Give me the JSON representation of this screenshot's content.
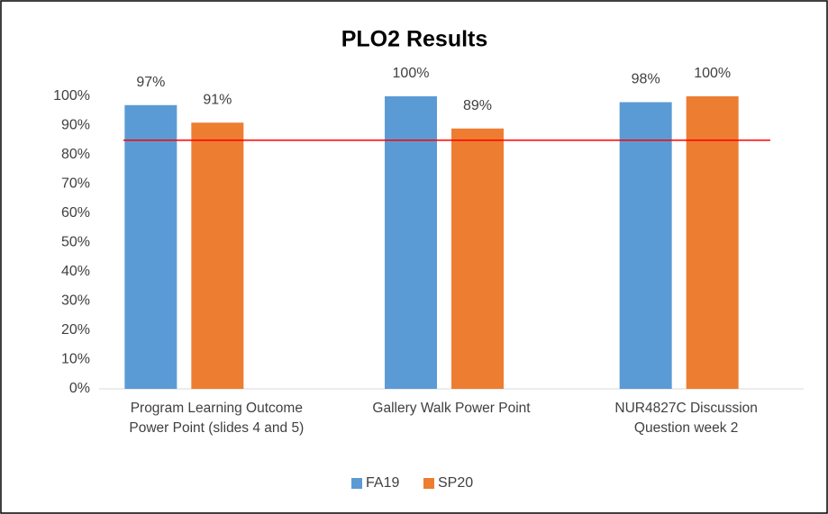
{
  "chart_data": {
    "type": "bar",
    "title": "PLO2 Results",
    "categories": [
      "Program Learning Outcome Power Point (slides 4 and 5)",
      "Gallery Walk Power Point",
      "NUR4827C Discussion Question week 2"
    ],
    "series": [
      {
        "name": "FA19",
        "color": "#5b9bd5",
        "values": [
          97,
          100,
          98
        ],
        "value_labels": [
          "97%",
          "100%",
          "98%"
        ]
      },
      {
        "name": "SP20",
        "color": "#ed7d31",
        "values": [
          91,
          89,
          100
        ],
        "value_labels": [
          "91%",
          "89%",
          "100%"
        ]
      }
    ],
    "ylim": [
      0,
      100
    ],
    "yticks": [
      {
        "value": 0,
        "label": "0%"
      },
      {
        "value": 10,
        "label": "10%"
      },
      {
        "value": 20,
        "label": "20%"
      },
      {
        "value": 30,
        "label": "30%"
      },
      {
        "value": 40,
        "label": "40%"
      },
      {
        "value": 50,
        "label": "50%"
      },
      {
        "value": 60,
        "label": "60%"
      },
      {
        "value": 70,
        "label": "70%"
      },
      {
        "value": 80,
        "label": "80%"
      },
      {
        "value": 90,
        "label": "90%"
      },
      {
        "value": 100,
        "label": "100%"
      }
    ],
    "reference_line": {
      "value": 85,
      "color": "#ff0000"
    },
    "legend": "bottom"
  }
}
